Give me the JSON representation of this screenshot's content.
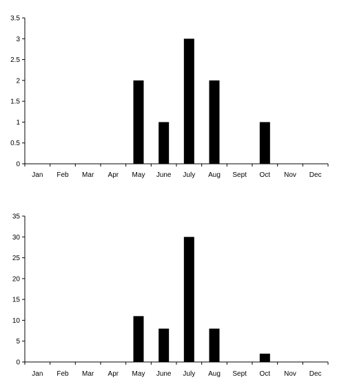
{
  "chart_data": [
    {
      "type": "bar",
      "categories": [
        "Jan",
        "Feb",
        "Mar",
        "Apr",
        "May",
        "June",
        "July",
        "Aug",
        "Sept",
        "Oct",
        "Nov",
        "Dec"
      ],
      "values": [
        0,
        0,
        0,
        0,
        2,
        1,
        3,
        2,
        0,
        1,
        0,
        0
      ],
      "yticks": [
        "0",
        "0.5",
        "1",
        "1.5",
        "2",
        "2.5",
        "3",
        "3.5"
      ],
      "ylim": [
        0,
        3.5
      ],
      "bar_color": "#000000"
    },
    {
      "type": "bar",
      "categories": [
        "Jan",
        "Feb",
        "Mar",
        "Apr",
        "May",
        "June",
        "July",
        "Aug",
        "Sept",
        "Oct",
        "Nov",
        "Dec"
      ],
      "values": [
        0,
        0,
        0,
        0,
        11,
        8,
        30,
        8,
        0,
        2,
        0,
        0
      ],
      "yticks": [
        "0",
        "5",
        "10",
        "15",
        "20",
        "25",
        "30",
        "35"
      ],
      "ylim": [
        0,
        35
      ],
      "bar_color": "#000000"
    }
  ]
}
